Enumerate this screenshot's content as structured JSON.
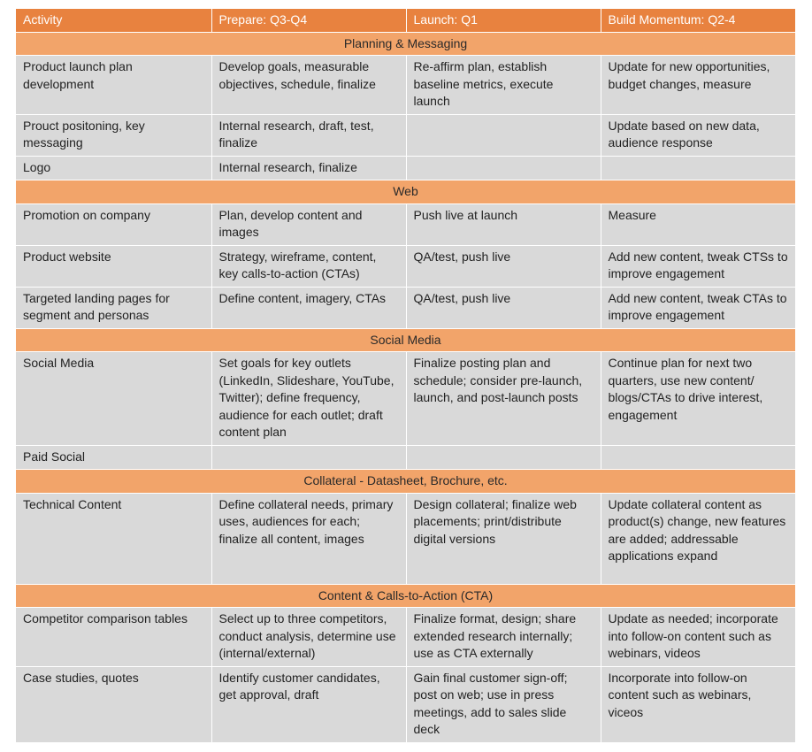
{
  "headers": [
    "Activity",
    "Prepare: Q3-Q4",
    "Launch: Q1",
    "Build Momentum: Q2-4"
  ],
  "sections": [
    {
      "title": "Planning & Messaging",
      "rows": [
        [
          "Product launch plan development",
          "Develop goals, measurable objectives, schedule, finalize",
          "Re-affirm plan, establish baseline metrics, execute launch",
          "Update for new opportunities, budget changes, measure"
        ],
        [
          "Prouct positoning, key messaging",
          "Internal research, draft, test, finalize",
          "",
          "Update based on new data, audience response"
        ],
        [
          "Logo",
          "Internal research, finalize",
          "",
          ""
        ]
      ]
    },
    {
      "title": "Web",
      "rows": [
        [
          "Promotion on company",
          "Plan, develop content and images",
          "Push live at launch",
          "Measure"
        ],
        [
          "Product website",
          "Strategy, wireframe, content, key calls-to-action (CTAs)",
          "QA/test, push live",
          "Add new content, tweak CTSs to improve engagement"
        ],
        [
          "Targeted landing pages for segment and personas",
          "Define content, imagery, CTAs",
          "QA/test, push live",
          "Add new content, tweak CTAs to improve engagement"
        ]
      ]
    },
    {
      "title": "Social Media",
      "rows": [
        [
          "Social Media",
          "Set goals for key outlets (LinkedIn, Slideshare, YouTube, Twitter); define frequency, audience for each outlet; draft content plan",
          "Finalize posting plan and schedule; consider pre-launch, launch, and post-launch posts",
          "Continue plan for next two quarters, use new content/ blogs/CTAs to drive interest, engagement"
        ],
        [
          "Paid Social",
          "",
          "",
          ""
        ]
      ]
    },
    {
      "title": "Collateral - Datasheet, Brochure, etc.",
      "rows": [
        [
          "Technical Content",
          "Define collateral needs, primary uses, audiences for each; finalize all content, images",
          "Design collateral; finalize web placements; print/distribute digital versions",
          "Update collateral content as product(s) change, new features are added; addressable applications expand"
        ]
      ]
    },
    {
      "title": "Content & Calls-to-Action (CTA)",
      "rows": [
        [
          "Competitor comparison tables",
          "Select up to three competitors, conduct analysis, determine use (internal/external)",
          "Finalize format, design; share extended research internally; use as CTA externally",
          "Update as needed; incorporate into follow-on content such as webinars, videos"
        ],
        [
          "Case studies, quotes",
          "Identify customer candidates, get approval, draft",
          "Gain final customer sign-off; post on web; use in press meetings, add to sales slide deck",
          "Incorporate into follow-on content such as webinars, viceos"
        ]
      ]
    }
  ]
}
